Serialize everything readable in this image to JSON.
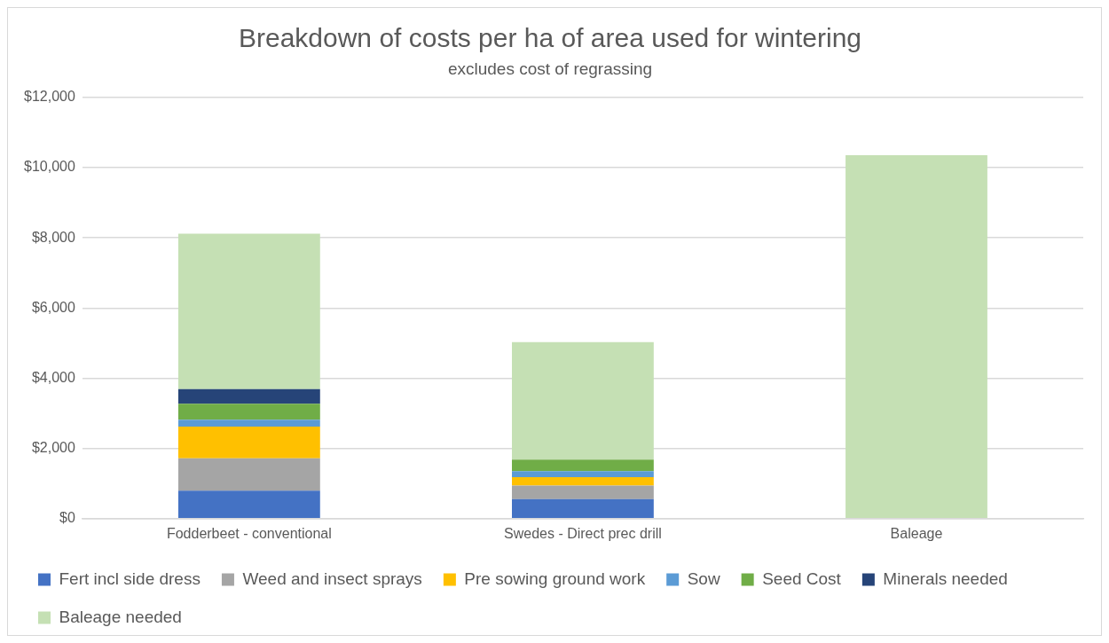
{
  "chart_data": {
    "type": "bar",
    "title": "Breakdown of costs per ha of area used for wintering",
    "subtitle": "excludes cost of regrassing",
    "categories": [
      "Fodderbeet - conventional",
      "Swedes - Direct prec drill",
      "Baleage"
    ],
    "stacked": true,
    "series": [
      {
        "name": "Fert incl side dress",
        "color": "#4472c4",
        "values": [
          800,
          560,
          0
        ]
      },
      {
        "name": "Weed and insect sprays",
        "color": "#a5a5a5",
        "values": [
          920,
          380,
          0
        ]
      },
      {
        "name": "Pre sowing ground work",
        "color": "#ffc000",
        "values": [
          900,
          240,
          0
        ]
      },
      {
        "name": "Sow",
        "color": "#5b9bd5",
        "values": [
          200,
          170,
          0
        ]
      },
      {
        "name": "Seed Cost",
        "color": "#70ad47",
        "values": [
          450,
          330,
          0
        ]
      },
      {
        "name": "Minerals needed",
        "color": "#264478",
        "values": [
          420,
          0,
          0
        ]
      },
      {
        "name": "Baleage needed",
        "color": "#c5e0b4",
        "values": [
          4430,
          3350,
          10350
        ]
      }
    ],
    "ylim": [
      0,
      12000
    ],
    "yticks": [
      {
        "value": 0,
        "label": "$0"
      },
      {
        "value": 2000,
        "label": "$2,000"
      },
      {
        "value": 4000,
        "label": "$4,000"
      },
      {
        "value": 6000,
        "label": "$6,000"
      },
      {
        "value": 8000,
        "label": "$8,000"
      },
      {
        "value": 10000,
        "label": "$10,000"
      },
      {
        "value": 12000,
        "label": "$12,000"
      }
    ],
    "grid": "y",
    "legend": "bottom"
  }
}
